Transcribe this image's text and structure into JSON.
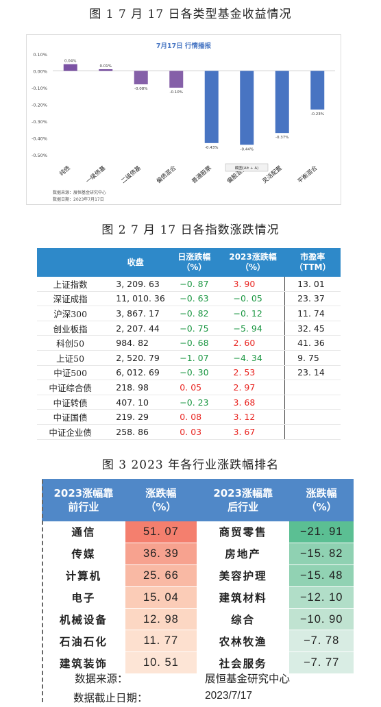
{
  "figure1": {
    "caption": "图 1   7 月 17 日各类型基金收益情况",
    "chart_data": {
      "type": "bar",
      "title": "7月17日  行情播报",
      "categories": [
        "纯债",
        "一级债基",
        "二级债基",
        "偏债混合",
        "普通股票",
        "偏股混合",
        "灵活配置",
        "平衡混合"
      ],
      "values": [
        0.04,
        0.01,
        -0.08,
        -0.1,
        -0.43,
        -0.44,
        -0.37,
        -0.23
      ],
      "value_labels": [
        "0.04%",
        "0.01%",
        "-0.08%",
        "-0.10%",
        "-0.43%",
        "-0.44%",
        "-0.37%",
        "-0.23%"
      ],
      "ylim": [
        -0.5,
        0.1
      ],
      "y_ticks": [
        "0.10%",
        "0.00%",
        "-0.10%",
        "-0.20%",
        "-0.30%",
        "-0.40%",
        "-0.50%"
      ],
      "colors": {
        "positive": "#7b52a4",
        "negative_stock": "#4874c2",
        "negative_bond": "#8560a8"
      },
      "source": "数据来源：展恒基金研究中心",
      "date": "数据日期：2023年7月17日",
      "overlay_tooltip": "截图(Alt + A)"
    }
  },
  "figure2": {
    "caption": "图 2   7 月 17 日各指数涨跌情况",
    "headers": [
      "",
      "收盘",
      "日涨跌幅\n（%）",
      "2023涨跌幅\n（%）",
      "市盈率\n（TTM）"
    ],
    "rows": [
      [
        "上证指数",
        "3, 209. 63",
        "−0. 87",
        "3. 90",
        "13. 01"
      ],
      [
        "深证成指",
        "11, 010. 36",
        "−0. 63",
        "−0. 05",
        "23. 37"
      ],
      [
        "沪深300",
        "3, 867. 17",
        "−0. 82",
        "−0. 12",
        "11. 74"
      ],
      [
        "创业板指",
        "2, 207. 44",
        "−0. 75",
        "−5. 94",
        "32. 45"
      ],
      [
        "科创50",
        "984. 82",
        "−0. 68",
        "2. 60",
        "41. 36"
      ],
      [
        "上证50",
        "2, 520. 79",
        "−1. 07",
        "−4. 34",
        "9. 75"
      ],
      [
        "中证500",
        "6, 012. 69",
        "−0. 30",
        "2. 53",
        "23. 14"
      ],
      [
        "中证综合债",
        "218. 98",
        "0. 05",
        "2. 97",
        ""
      ],
      [
        "中证转债",
        "407. 10",
        "−0. 23",
        "3. 68",
        ""
      ],
      [
        "中证国债",
        "219. 29",
        "0. 08",
        "3. 12",
        ""
      ],
      [
        "中证企业债",
        "258. 86",
        "0. 03",
        "3. 67",
        ""
      ]
    ],
    "signs": [
      [
        "neg",
        "pos"
      ],
      [
        "neg",
        "neg"
      ],
      [
        "neg",
        "neg"
      ],
      [
        "neg",
        "neg"
      ],
      [
        "neg",
        "pos"
      ],
      [
        "neg",
        "neg"
      ],
      [
        "neg",
        "pos"
      ],
      [
        "pos",
        "pos"
      ],
      [
        "neg",
        "pos"
      ],
      [
        "pos",
        "pos"
      ],
      [
        "pos",
        "pos"
      ]
    ],
    "colors": {
      "header": "#2e89c9",
      "up": "#e8231f",
      "down": "#1a9641"
    }
  },
  "figure3": {
    "caption": "图 3   2023 年各行业涨跌幅排名",
    "headers": [
      "2023涨幅靠\n前行业",
      "涨跌幅\n（%）",
      "2023涨幅靠\n后行业",
      "涨跌幅\n（%）"
    ],
    "rows": [
      [
        "通信",
        "51. 07",
        "商贸零售",
        "−21. 91"
      ],
      [
        "传媒",
        "36. 39",
        "房地产",
        "−15. 82"
      ],
      [
        "计算机",
        "25. 66",
        "美容护理",
        "−15. 48"
      ],
      [
        "电子",
        "15. 04",
        "建筑材料",
        "−12. 10"
      ],
      [
        "机械设备",
        "12. 98",
        "综合",
        "−10. 90"
      ],
      [
        "石油石化",
        "11. 77",
        "农林牧渔",
        "−7. 78"
      ],
      [
        "建筑装饰",
        "10. 51",
        "社会服务",
        "−7. 77"
      ]
    ],
    "top_colors": [
      "#f47f6e",
      "#f7a28f",
      "#f9b9a4",
      "#fbccb7",
      "#fcd7c3",
      "#fde0cf",
      "#fde5d6"
    ],
    "bottom_colors": [
      "#5bbf93",
      "#8fd1b2",
      "#91d2b3",
      "#b1dec8",
      "#c0e3d1",
      "#d8ece3",
      "#d9ede4"
    ],
    "source_label": "数据来源：",
    "source_value": "展恒基金研究中心",
    "date_label": "数据截止日期：",
    "date_value": "2023/7/17"
  }
}
